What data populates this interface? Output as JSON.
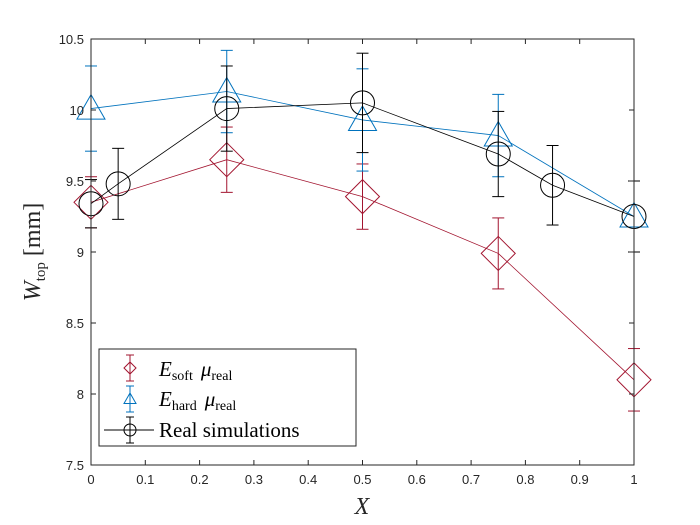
{
  "chart_data": {
    "type": "line",
    "xlabel": {
      "main": "X"
    },
    "ylabel": {
      "main": "W",
      "sub": "top",
      "unit": "[mm]"
    },
    "xlim": [
      0,
      1
    ],
    "ylim": [
      7.5,
      10.5
    ],
    "xticks": [
      0,
      0.1,
      0.2,
      0.3,
      0.4,
      0.5,
      0.6,
      0.7,
      0.8,
      0.9,
      1
    ],
    "xtick_labels": [
      "0",
      "0.1",
      "0.2",
      "0.3",
      "0.4",
      "0.5",
      "0.6",
      "0.7",
      "0.8",
      "0.9",
      "1"
    ],
    "yticks": [
      7.5,
      8,
      8.5,
      9,
      9.5,
      10,
      10.5
    ],
    "ytick_labels": [
      "7.5",
      "8",
      "8.5",
      "9",
      "9.5",
      "10",
      "10.5"
    ],
    "grid": false,
    "legend_position": "bottom-left",
    "series": [
      {
        "name": "E_soft mu_real",
        "legend_main": "E",
        "legend_sub": "soft",
        "legend_mu": "μ",
        "legend_mu_sub": "real",
        "marker": "diamond",
        "color": "#a2142f",
        "x": [
          0,
          0.25,
          0.5,
          0.75,
          1
        ],
        "y": [
          9.35,
          9.65,
          9.39,
          8.99,
          8.1
        ],
        "err": [
          0.18,
          0.23,
          0.23,
          0.25,
          0.22
        ]
      },
      {
        "name": "E_hard mu_real",
        "legend_main": "E",
        "legend_sub": "hard",
        "legend_mu": "μ",
        "legend_mu_sub": "real",
        "marker": "triangle",
        "color": "#0072bd",
        "x": [
          0,
          0.25,
          0.5,
          0.75,
          1
        ],
        "y": [
          10.01,
          10.13,
          9.93,
          9.82,
          9.25
        ],
        "err": [
          0.3,
          0.29,
          0.36,
          0.29,
          0.25
        ]
      },
      {
        "name": "Real simulations",
        "legend_text": "Real simulations",
        "marker": "circle",
        "color": "#000000",
        "x": [
          0,
          0.05,
          0.25,
          0.5,
          0.75,
          0.85,
          1
        ],
        "y": [
          9.34,
          9.48,
          10.01,
          10.05,
          9.69,
          9.47,
          9.25
        ],
        "err": [
          0.17,
          0.25,
          0.3,
          0.35,
          0.3,
          0.28,
          0.25
        ]
      }
    ]
  }
}
